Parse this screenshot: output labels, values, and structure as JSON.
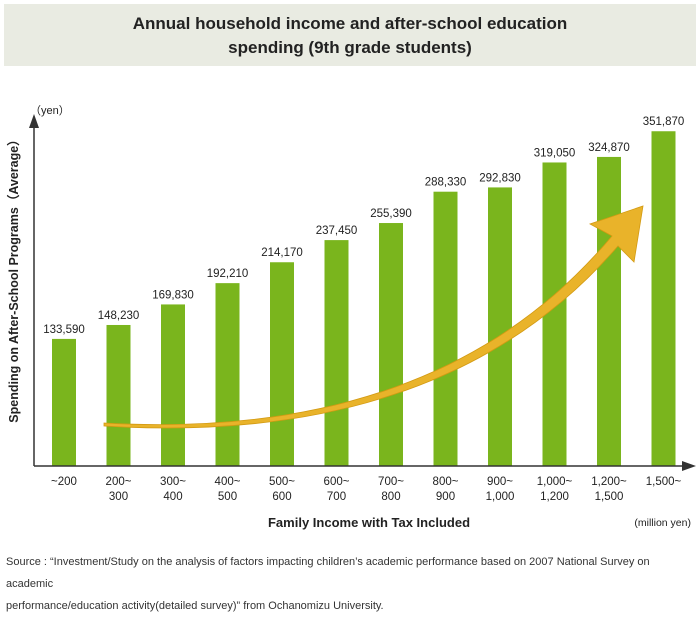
{
  "header": {
    "title_line1": "Annual household income and after-school education",
    "title_line2": "spending (9th grade students)"
  },
  "chart_data": {
    "type": "bar",
    "title": "Annual household income and after-school education spending (9th grade students)",
    "xlabel": "Family Income with Tax Included",
    "x_unit": "(million yen)",
    "ylabel": "Spending on After-School Programs（Average）",
    "y_unit": "（yen）",
    "ylim": [
      0,
      370000
    ],
    "bar_color": "#7ab51d",
    "arrow_color": "#e9b32a",
    "categories": [
      [
        "~200"
      ],
      [
        "200~",
        "300"
      ],
      [
        "300~",
        "400"
      ],
      [
        "400~",
        "500"
      ],
      [
        "500~",
        "600"
      ],
      [
        "600~",
        "700"
      ],
      [
        "700~",
        "800"
      ],
      [
        "800~",
        "900"
      ],
      [
        "900~",
        "1,000"
      ],
      [
        "1,000~",
        "1,200"
      ],
      [
        "1,200~",
        "1,500"
      ],
      [
        "1,500~"
      ]
    ],
    "values": [
      133590,
      148230,
      169830,
      192210,
      214170,
      237450,
      255390,
      288330,
      292830,
      319050,
      324870,
      351870
    ],
    "value_labels": [
      "133,590",
      "148,230",
      "169,830",
      "192,210",
      "214,170",
      "237,450",
      "255,390",
      "288,330",
      "292,830",
      "319,050",
      "324,870",
      "351,870"
    ]
  },
  "footer": {
    "source_line1": "Source : “Investment/Study on the analysis of factors impacting children’s academic performance based on 2007 National Survey on academic",
    "source_line2": "performance/education activity(detailed survey)” from Ochanomizu University."
  }
}
